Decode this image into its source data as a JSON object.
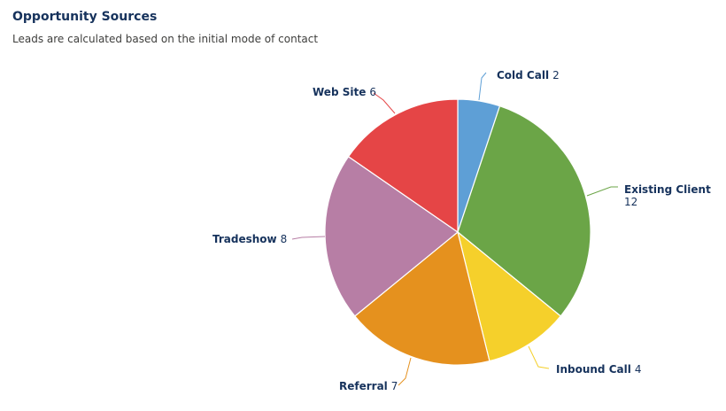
{
  "header": {
    "title": "Opportunity Sources",
    "subtitle": "Leads are calculated based on the initial mode of contact"
  },
  "chart_data": {
    "type": "pie",
    "title": "Opportunity Sources",
    "subtitle": "Leads are calculated based on the initial mode of contact",
    "slices": [
      {
        "label": "Cold Call",
        "value": 2,
        "color": "#5e9fd6"
      },
      {
        "label": "Existing Client",
        "value": 12,
        "color": "#6ba547"
      },
      {
        "label": "Inbound Call",
        "value": 4,
        "color": "#f5d02b"
      },
      {
        "label": "Referral",
        "value": 7,
        "color": "#e5911e"
      },
      {
        "label": "Tradeshow",
        "value": 8,
        "color": "#b77ea5"
      },
      {
        "label": "Web Site",
        "value": 6,
        "color": "#e54546"
      }
    ]
  }
}
